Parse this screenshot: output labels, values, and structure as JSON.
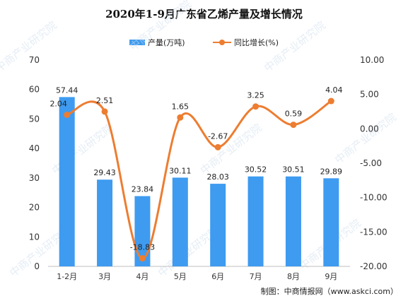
{
  "title": "2020年1-9月广东省乙烯产量及增长情况",
  "legend": {
    "bar_label": "产量(万吨)",
    "line_label": "同比增长(%)"
  },
  "source": "制图：中商情报网（www.askci.com）",
  "watermark": "中商产业研究院",
  "colors": {
    "bar": "#3e9bf0",
    "line": "#ed7d31"
  },
  "chart_data": {
    "type": "bar",
    "categories": [
      "1-2月",
      "3月",
      "4月",
      "5月",
      "6月",
      "7月",
      "8月",
      "9月"
    ],
    "series": [
      {
        "name": "产量(万吨)",
        "type": "bar",
        "axis": "left",
        "values": [
          57.44,
          29.43,
          23.84,
          30.11,
          28.03,
          30.52,
          30.51,
          29.89
        ]
      },
      {
        "name": "同比增长(%)",
        "type": "line",
        "axis": "right",
        "values": [
          2.04,
          2.51,
          -18.83,
          1.65,
          -2.67,
          3.25,
          0.59,
          4.04
        ]
      }
    ],
    "ylim": [
      0,
      70
    ],
    "y2lim": [
      -20,
      10
    ],
    "yticks": [
      "0",
      "10",
      "20",
      "30",
      "40",
      "50",
      "60",
      "70"
    ],
    "y2ticks": [
      "-20.00",
      "-15.00",
      "-10.00",
      "-5.00",
      "0.00",
      "5.00",
      "10.00"
    ],
    "grid": false,
    "legend_position": "top"
  }
}
